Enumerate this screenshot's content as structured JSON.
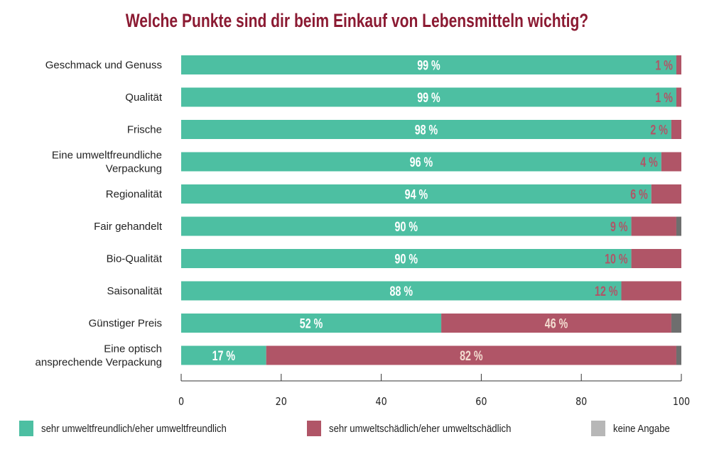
{
  "chart_data": {
    "type": "bar",
    "orientation": "horizontal",
    "stacked": true,
    "title": "Welche Punkte sind dir beim Einkauf von Lebensmitteln wichtig?",
    "xlabel": "",
    "ylabel": "",
    "xlim": [
      0,
      100
    ],
    "xticks": [
      "0",
      "20",
      "40",
      "60",
      "80",
      "100"
    ],
    "grid": false,
    "legend_position": "bottom",
    "categories": [
      [
        "Geschmack und Genuss"
      ],
      [
        "Qualität"
      ],
      [
        "Frische"
      ],
      [
        "Eine umweltfreundliche",
        "Verpackung"
      ],
      [
        "Regionalität"
      ],
      [
        "Fair gehandelt"
      ],
      [
        "Bio-Qualität"
      ],
      [
        "Saisonalität"
      ],
      [
        "Günstiger Preis"
      ],
      [
        "Eine optisch",
        "ansprechende Verpackung"
      ]
    ],
    "series": [
      {
        "name": "sehr umweltfreundlich/eher umweltfreundlich",
        "color": "#4dbfa2",
        "label_color": "#ffffff",
        "values": [
          99,
          99,
          98,
          96,
          94,
          90,
          90,
          88,
          52,
          17
        ]
      },
      {
        "name": "sehr umweltschädlich/eher umweltschädlich",
        "color": "#b05567",
        "label_color": "#f3dcd0",
        "values": [
          1,
          1,
          2,
          4,
          6,
          9,
          10,
          12,
          46,
          82
        ]
      },
      {
        "name": "keine Angabe",
        "color": "#6e6e6e",
        "legend_color": "#b7b7b7",
        "values": [
          0,
          0,
          0,
          0,
          0,
          1,
          0,
          0,
          2,
          1
        ]
      }
    ],
    "value_labels": {
      "first": [
        "99 %",
        "99 %",
        "98 %",
        "96 %",
        "94 %",
        "90 %",
        "90 %",
        "88 %",
        "52 %",
        "17 %"
      ],
      "second": [
        "1 %",
        "1 %",
        "2 %",
        "4 %",
        "6 %",
        "9 %",
        "10 %",
        "12 %",
        "46 %",
        "82 %"
      ]
    },
    "small_label_color": "#b05567"
  }
}
